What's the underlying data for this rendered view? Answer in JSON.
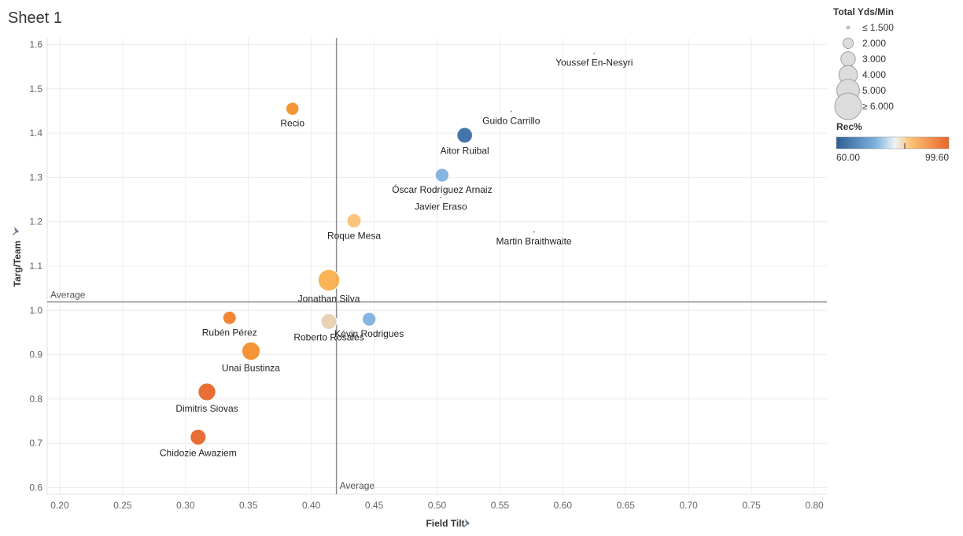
{
  "sheet": {
    "title": "Sheet 1"
  },
  "chart_data": {
    "type": "scatter",
    "xlabel": "Field Tilt",
    "ylabel": "Targ/Team",
    "xlim": [
      0.19,
      0.81
    ],
    "ylim": [
      0.585,
      1.615
    ],
    "xticks": [
      "0.20",
      "0.25",
      "0.30",
      "0.35",
      "0.40",
      "0.45",
      "0.50",
      "0.55",
      "0.60",
      "0.65",
      "0.70",
      "0.75",
      "0.80"
    ],
    "yticks": [
      "0.6",
      "0.7",
      "0.8",
      "0.9",
      "1.0",
      "1.1",
      "1.2",
      "1.3",
      "1.4",
      "1.5",
      "1.6"
    ],
    "grid": true,
    "reference_lines": [
      {
        "axis": "x",
        "value": 0.42,
        "label": "Average"
      },
      {
        "axis": "y",
        "value": 1.019,
        "label": "Average"
      }
    ],
    "points": [
      {
        "name": "Youssef En-Nesyri",
        "x": 0.625,
        "y": 1.58,
        "size": 1.0,
        "color": "#888888"
      },
      {
        "name": "Recio",
        "x": 0.385,
        "y": 1.455,
        "size": 2.7,
        "color": "#f28e2b"
      },
      {
        "name": "Guido Carrillo",
        "x": 0.559,
        "y": 1.449,
        "size": 1.0,
        "color": "#888888"
      },
      {
        "name": "Aitor Ruibal",
        "x": 0.522,
        "y": 1.395,
        "size": 3.5,
        "color": "#3b6ea5"
      },
      {
        "name": "Óscar Rodríguez Arnaiz",
        "x": 0.504,
        "y": 1.305,
        "size": 2.9,
        "color": "#7fb2de"
      },
      {
        "name": "Javier Eraso",
        "x": 0.503,
        "y": 1.255,
        "size": 1.0,
        "color": "#888888"
      },
      {
        "name": "Roque Mesa",
        "x": 0.434,
        "y": 1.202,
        "size": 3.1,
        "color": "#fbc276"
      },
      {
        "name": "Martin Braithwaite",
        "x": 0.577,
        "y": 1.177,
        "size": 1.0,
        "color": "#888888"
      },
      {
        "name": "Jonathan Silva",
        "x": 0.414,
        "y": 1.068,
        "size": 5.5,
        "color": "#f9b04e"
      },
      {
        "name": "Rubén Pérez",
        "x": 0.335,
        "y": 0.983,
        "size": 2.8,
        "color": "#f07f2a"
      },
      {
        "name": "Roberto Rosales",
        "x": 0.414,
        "y": 0.975,
        "size": 3.6,
        "color": "#e8d0b0"
      },
      {
        "name": "Kévin Rodrigues",
        "x": 0.446,
        "y": 0.98,
        "size": 2.9,
        "color": "#7fb2de"
      },
      {
        "name": "Unai Bustinza",
        "x": 0.352,
        "y": 0.908,
        "size": 4.4,
        "color": "#f28e2b"
      },
      {
        "name": "Dimitris Siovas",
        "x": 0.317,
        "y": 0.816,
        "size": 4.2,
        "color": "#e8662a"
      },
      {
        "name": "Chidozie Awaziem",
        "x": 0.31,
        "y": 0.714,
        "size": 3.6,
        "color": "#e8662a"
      }
    ]
  },
  "legend": {
    "size_title": "Total Yds/Min",
    "size_items": [
      "≤ 1.500",
      "2.000",
      "3.000",
      "4.000",
      "5.000",
      "≥ 6.000"
    ],
    "color_title": "Rec%",
    "color_min": "60.00",
    "color_max": "99.60",
    "color_stops": [
      "#2c5f95",
      "#7fb2de",
      "#eef2f4",
      "#fbc276",
      "#e8662a"
    ]
  }
}
